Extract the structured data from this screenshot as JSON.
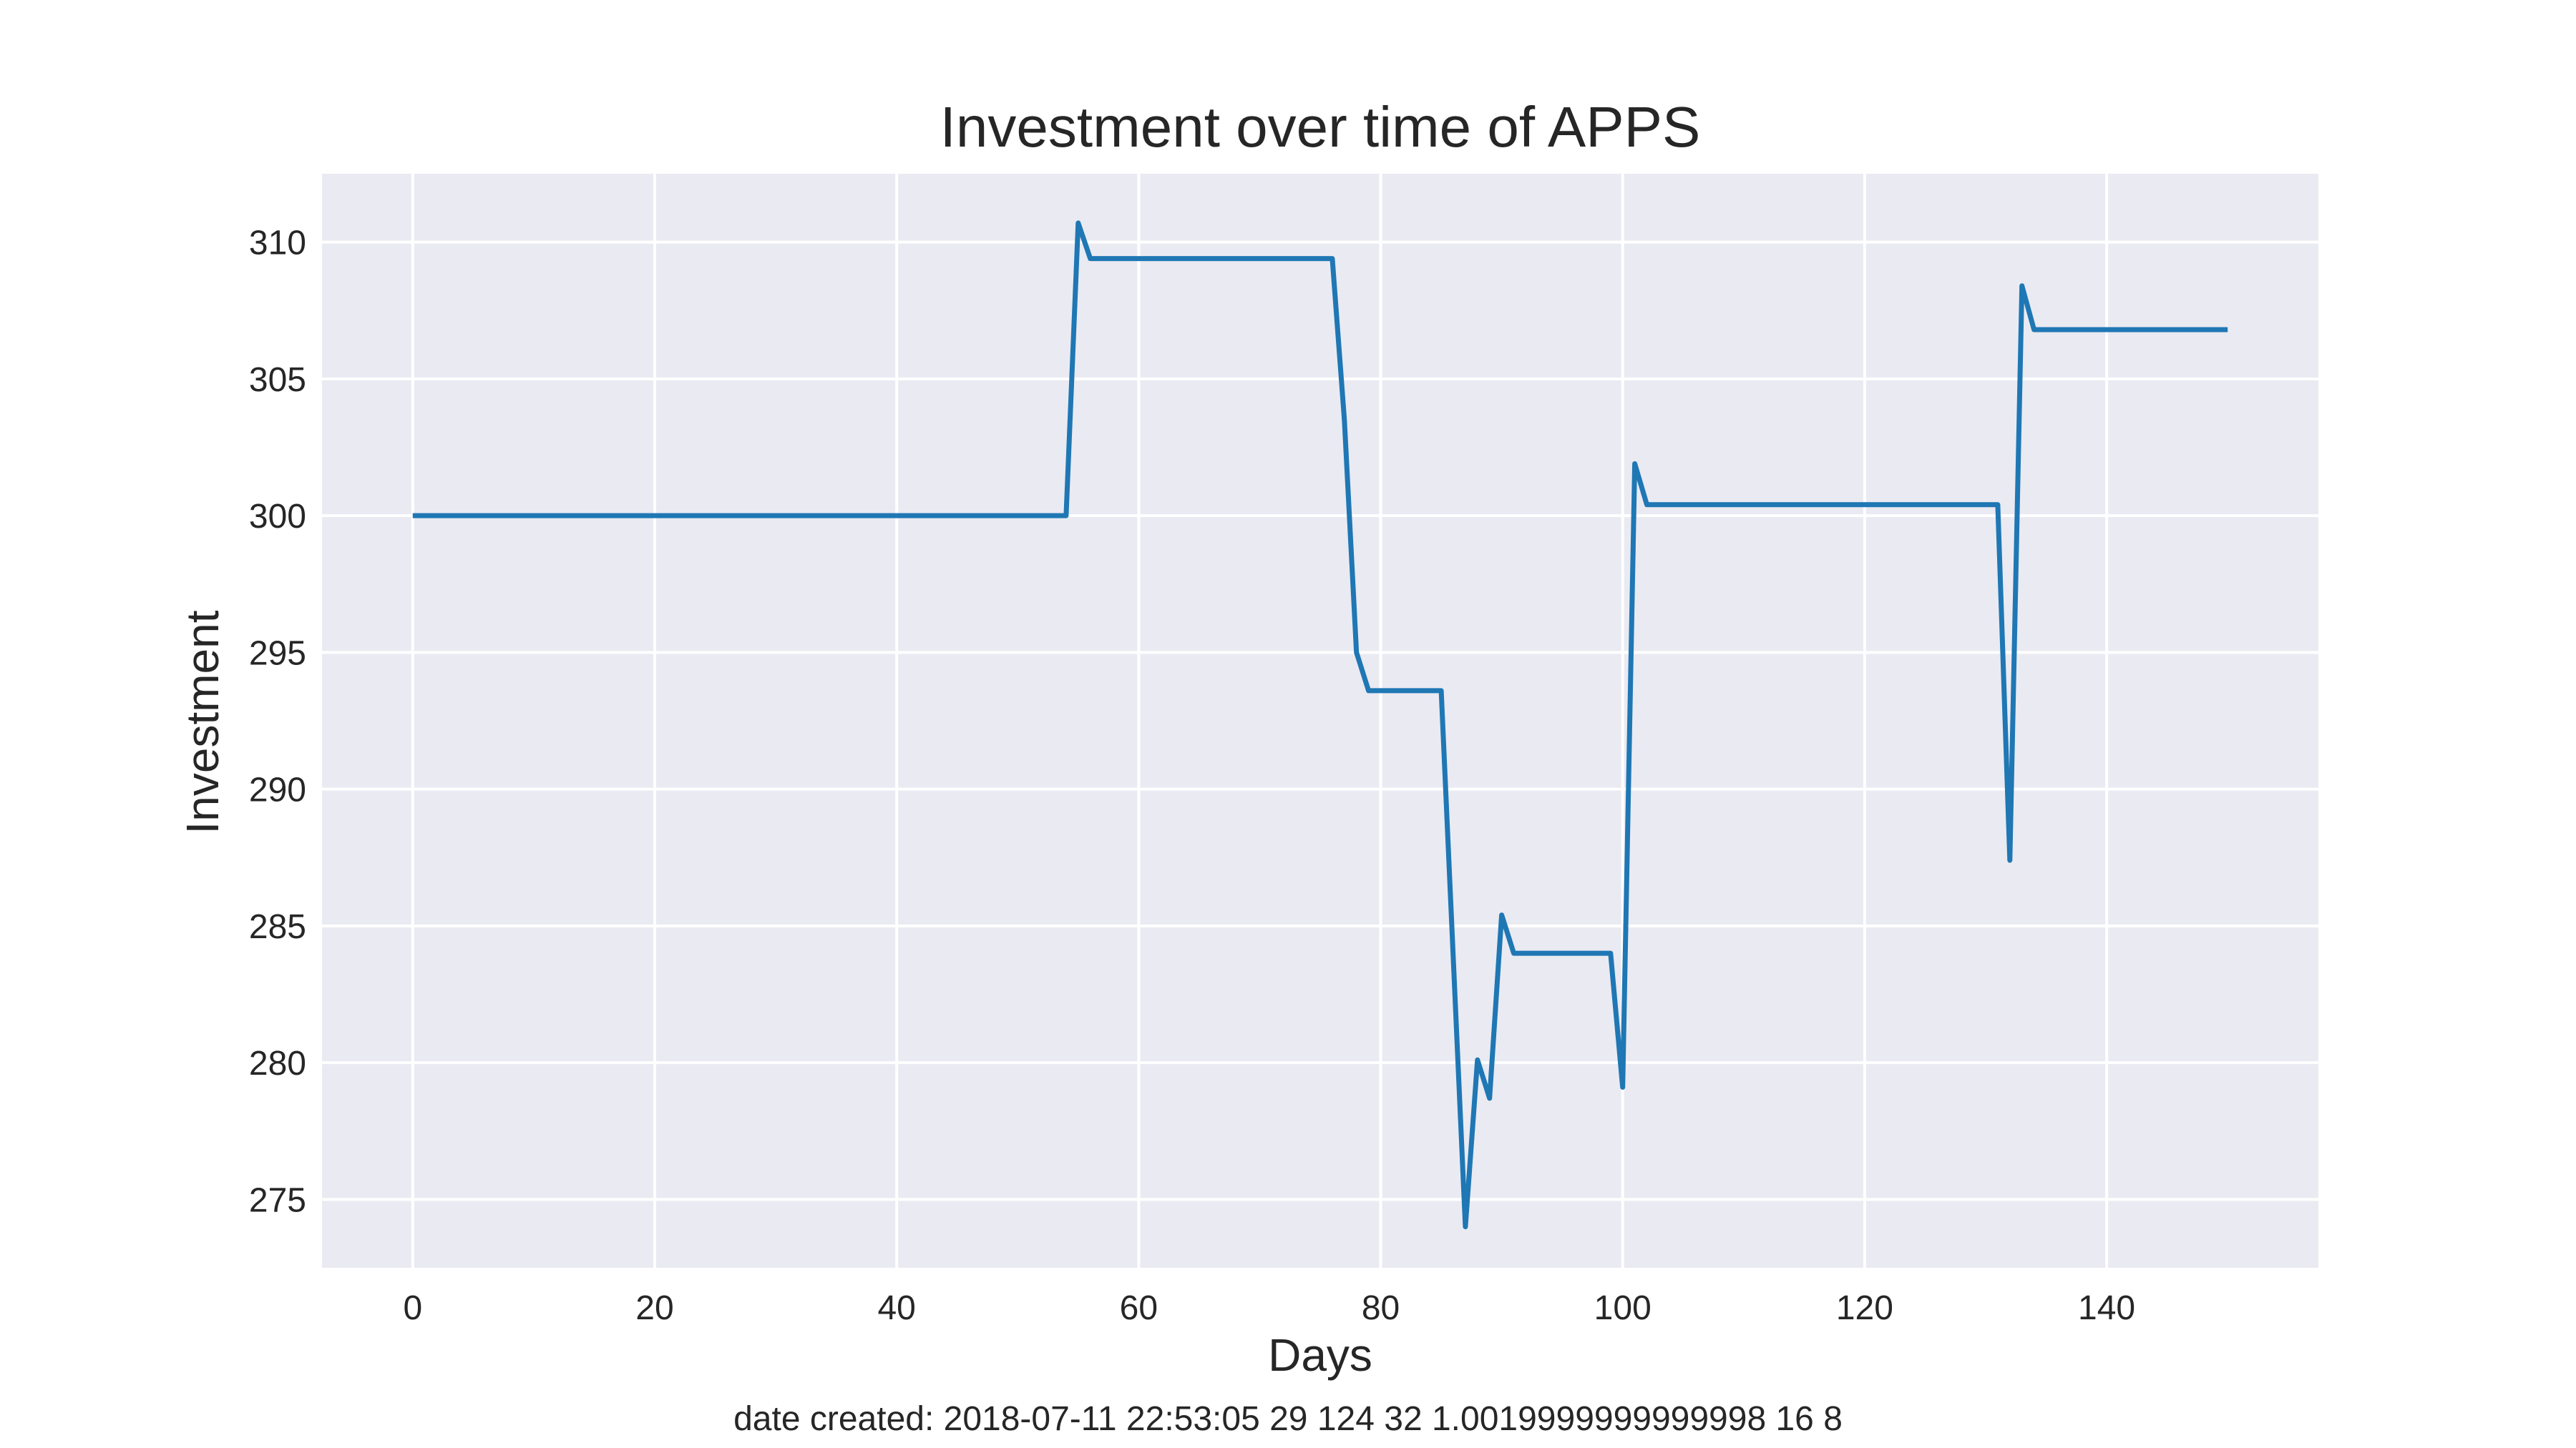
{
  "chart_data": {
    "type": "line",
    "title": "Investment over time of APPS",
    "xlabel": "Days",
    "ylabel": "Investment",
    "xlim": [
      -7.5,
      157.5
    ],
    "ylim": [
      272.5,
      312.5
    ],
    "xticks": [
      0,
      20,
      40,
      60,
      80,
      100,
      120,
      140
    ],
    "yticks": [
      275,
      280,
      285,
      290,
      295,
      300,
      305,
      310
    ],
    "grid": true,
    "legend": "none",
    "colors": {
      "background": "#ffffff",
      "plot_background": "#eaeaf2",
      "grid": "#ffffff",
      "line": "#1f77b4",
      "text": "#262626"
    },
    "series": [
      {
        "x": [
          0,
          54,
          55,
          56,
          76,
          77,
          78,
          79,
          85,
          87,
          88,
          89,
          90,
          91,
          99,
          100,
          101,
          102,
          131,
          132,
          133,
          134,
          150
        ],
        "y": [
          300,
          300,
          310.7,
          309.4,
          309.4,
          303.5,
          295,
          293.6,
          293.6,
          274,
          280.1,
          278.7,
          285.4,
          284,
          284,
          279.1,
          301.9,
          300.4,
          300.4,
          287.4,
          308.4,
          306.8,
          306.8
        ]
      }
    ]
  },
  "footer": {
    "text": "date created: 2018-07-11 22:53:05 29 124 32 1.0019999999999998 16 8"
  }
}
